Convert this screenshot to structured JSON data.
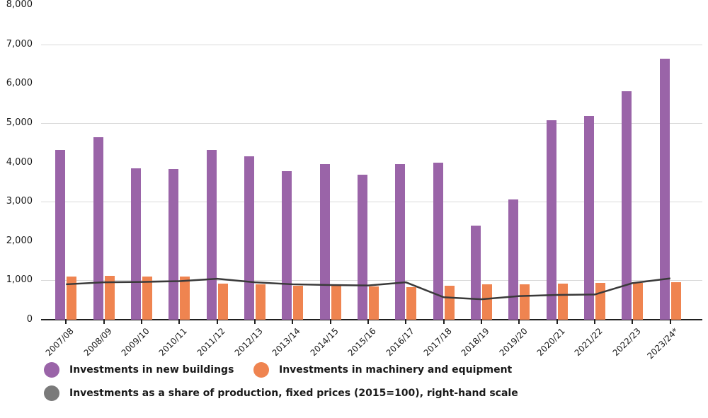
{
  "colors": {
    "background": "#ffffff",
    "purple": "#9a64a8",
    "orange": "#ef8450",
    "line": "#3a3a3a",
    "legend_gray": "#7a7a7a",
    "grid": "#d9d9d9",
    "axis": "#1f1f1f",
    "text": "#1a1a1a"
  },
  "y_axis": {
    "tick_labels": [
      "8,000",
      "7,000",
      "6,000",
      "5,000",
      "4,000",
      "3,000",
      "2,000",
      "1,000",
      "0"
    ]
  },
  "chart_data": {
    "type": "bar",
    "title": "",
    "xlabel": "",
    "ylabel": "",
    "ylim": [
      0,
      8000
    ],
    "grid": "horizontal gridlines at 1,000 / 3,000 / 5,000 / 7,000",
    "legend_position": "bottom-left",
    "categories": [
      "2007/08",
      "2008/09",
      "2009/10",
      "2010/11",
      "2011/12",
      "2012/13",
      "2013/14",
      "2014/15",
      "2015/16",
      "2016/17",
      "2017/18",
      "2018/19",
      "2019/20",
      "2020/21",
      "2021/22",
      "2022/23",
      "2023/24*"
    ],
    "series": [
      {
        "name": "Investments in new buildings",
        "kind": "bar",
        "color_key": "purple",
        "values": [
          4320,
          4630,
          3850,
          3830,
          4320,
          4150,
          3770,
          3960,
          3690,
          3960,
          3990,
          2390,
          3060,
          5070,
          5170,
          5810,
          6640
        ]
      },
      {
        "name": "Investments in machinery and equipment",
        "kind": "bar",
        "color_key": "orange",
        "values": [
          1100,
          1110,
          1090,
          1090,
          920,
          900,
          870,
          860,
          840,
          820,
          860,
          890,
          890,
          920,
          940,
          930,
          960
        ]
      },
      {
        "name": "Investments as a share of production, fixed prices (2015=100), right-hand scale",
        "kind": "line",
        "color_key": "line",
        "values": [
          900,
          950,
          960,
          980,
          1040,
          950,
          900,
          880,
          870,
          950,
          570,
          520,
          600,
          630,
          640,
          930,
          1050
        ]
      }
    ]
  }
}
